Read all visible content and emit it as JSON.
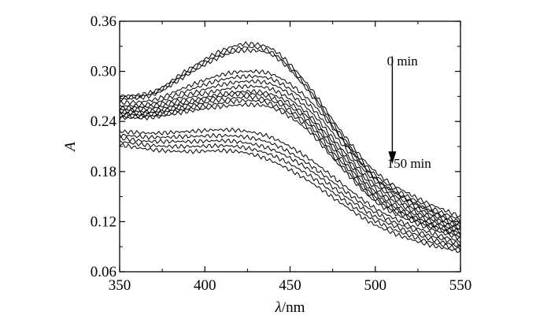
{
  "chart_data": {
    "type": "line",
    "xlabel_symbol": "λ",
    "xlabel_unit": "/nm",
    "ylabel": "A",
    "xlim": [
      350,
      550
    ],
    "ylim": [
      0.06,
      0.36
    ],
    "x_ticks": [
      350,
      400,
      450,
      500,
      550
    ],
    "x_tick_labels": [
      "350",
      "400",
      "450",
      "500",
      "550"
    ],
    "y_ticks": [
      0.06,
      0.12,
      0.18,
      0.24,
      0.3,
      0.36
    ],
    "y_tick_labels": [
      "0.06",
      "0.12",
      "0.18",
      "0.24",
      "0.30",
      "0.36"
    ],
    "grid": false,
    "legend": "none",
    "annotations": [
      {
        "text": "0 min",
        "x": 505,
        "y": 0.313
      },
      {
        "text": "150 min",
        "x": 505,
        "y": 0.19
      }
    ],
    "arrow": {
      "x": 510,
      "y_start": 0.318,
      "y_end": 0.189
    },
    "series": [
      {
        "values": [
          [
            350,
            0.27
          ],
          [
            370,
            0.276
          ],
          [
            390,
            0.302
          ],
          [
            410,
            0.325
          ],
          [
            425,
            0.333
          ],
          [
            440,
            0.326
          ],
          [
            460,
            0.285
          ],
          [
            480,
            0.228
          ],
          [
            500,
            0.18
          ],
          [
            525,
            0.148
          ],
          [
            550,
            0.126
          ]
        ]
      },
      {
        "values": [
          [
            350,
            0.268
          ],
          [
            370,
            0.274
          ],
          [
            390,
            0.299
          ],
          [
            410,
            0.321
          ],
          [
            425,
            0.329
          ],
          [
            440,
            0.322
          ],
          [
            460,
            0.281
          ],
          [
            480,
            0.224
          ],
          [
            500,
            0.176
          ],
          [
            525,
            0.144
          ],
          [
            550,
            0.122
          ]
        ]
      },
      {
        "values": [
          [
            350,
            0.266
          ],
          [
            370,
            0.272
          ],
          [
            390,
            0.296
          ],
          [
            410,
            0.318
          ],
          [
            425,
            0.325
          ],
          [
            440,
            0.319
          ],
          [
            460,
            0.278
          ],
          [
            480,
            0.22
          ],
          [
            500,
            0.172
          ],
          [
            525,
            0.14
          ],
          [
            550,
            0.119
          ]
        ]
      },
      {
        "values": [
          [
            350,
            0.262
          ],
          [
            370,
            0.266
          ],
          [
            390,
            0.282
          ],
          [
            410,
            0.296
          ],
          [
            425,
            0.3
          ],
          [
            440,
            0.296
          ],
          [
            460,
            0.268
          ],
          [
            480,
            0.22
          ],
          [
            500,
            0.172
          ],
          [
            525,
            0.14
          ],
          [
            550,
            0.116
          ]
        ]
      },
      {
        "values": [
          [
            350,
            0.258
          ],
          [
            370,
            0.262
          ],
          [
            390,
            0.277
          ],
          [
            410,
            0.29
          ],
          [
            425,
            0.294
          ],
          [
            440,
            0.29
          ],
          [
            460,
            0.262
          ],
          [
            480,
            0.214
          ],
          [
            500,
            0.168
          ],
          [
            525,
            0.136
          ],
          [
            550,
            0.114
          ]
        ]
      },
      {
        "values": [
          [
            350,
            0.256
          ],
          [
            370,
            0.259
          ],
          [
            390,
            0.272
          ],
          [
            410,
            0.284
          ],
          [
            425,
            0.288
          ],
          [
            440,
            0.284
          ],
          [
            460,
            0.256
          ],
          [
            480,
            0.208
          ],
          [
            500,
            0.164
          ],
          [
            525,
            0.133
          ],
          [
            550,
            0.112
          ]
        ]
      },
      {
        "values": [
          [
            350,
            0.254
          ],
          [
            370,
            0.256
          ],
          [
            390,
            0.268
          ],
          [
            410,
            0.278
          ],
          [
            425,
            0.282
          ],
          [
            440,
            0.278
          ],
          [
            460,
            0.25
          ],
          [
            480,
            0.204
          ],
          [
            500,
            0.16
          ],
          [
            525,
            0.13
          ],
          [
            550,
            0.11
          ]
        ]
      },
      {
        "values": [
          [
            350,
            0.252
          ],
          [
            370,
            0.253
          ],
          [
            390,
            0.264
          ],
          [
            410,
            0.273
          ],
          [
            425,
            0.276
          ],
          [
            440,
            0.272
          ],
          [
            460,
            0.246
          ],
          [
            480,
            0.2
          ],
          [
            500,
            0.156
          ],
          [
            525,
            0.127
          ],
          [
            550,
            0.108
          ]
        ]
      },
      {
        "values": [
          [
            350,
            0.25
          ],
          [
            370,
            0.251
          ],
          [
            390,
            0.261
          ],
          [
            410,
            0.27
          ],
          [
            425,
            0.273
          ],
          [
            440,
            0.268
          ],
          [
            460,
            0.242
          ],
          [
            480,
            0.196
          ],
          [
            500,
            0.153
          ],
          [
            525,
            0.124
          ],
          [
            550,
            0.106
          ]
        ]
      },
      {
        "values": [
          [
            350,
            0.248
          ],
          [
            370,
            0.249
          ],
          [
            390,
            0.258
          ],
          [
            410,
            0.266
          ],
          [
            425,
            0.269
          ],
          [
            440,
            0.264
          ],
          [
            460,
            0.238
          ],
          [
            480,
            0.192
          ],
          [
            500,
            0.15
          ],
          [
            525,
            0.122
          ],
          [
            550,
            0.104
          ]
        ]
      },
      {
        "values": [
          [
            350,
            0.246
          ],
          [
            370,
            0.247
          ],
          [
            390,
            0.255
          ],
          [
            410,
            0.262
          ],
          [
            425,
            0.265
          ],
          [
            440,
            0.26
          ],
          [
            460,
            0.234
          ],
          [
            480,
            0.188
          ],
          [
            500,
            0.147
          ],
          [
            525,
            0.12
          ],
          [
            550,
            0.102
          ]
        ]
      },
      {
        "values": [
          [
            350,
            0.244
          ],
          [
            370,
            0.245
          ],
          [
            390,
            0.252
          ],
          [
            410,
            0.258
          ],
          [
            425,
            0.26
          ],
          [
            440,
            0.256
          ],
          [
            460,
            0.23
          ],
          [
            480,
            0.185
          ],
          [
            500,
            0.144
          ],
          [
            525,
            0.117
          ],
          [
            550,
            0.1
          ]
        ]
      },
      {
        "values": [
          [
            350,
            0.228
          ],
          [
            370,
            0.226
          ],
          [
            390,
            0.228
          ],
          [
            410,
            0.23
          ],
          [
            425,
            0.228
          ],
          [
            440,
            0.22
          ],
          [
            460,
            0.197
          ],
          [
            480,
            0.166
          ],
          [
            500,
            0.136
          ],
          [
            525,
            0.112
          ],
          [
            550,
            0.096
          ]
        ]
      },
      {
        "values": [
          [
            350,
            0.224
          ],
          [
            370,
            0.221
          ],
          [
            390,
            0.222
          ],
          [
            410,
            0.223
          ],
          [
            425,
            0.221
          ],
          [
            440,
            0.213
          ],
          [
            460,
            0.19
          ],
          [
            480,
            0.16
          ],
          [
            500,
            0.131
          ],
          [
            525,
            0.108
          ],
          [
            550,
            0.093
          ]
        ]
      },
      {
        "values": [
          [
            350,
            0.22
          ],
          [
            370,
            0.216
          ],
          [
            390,
            0.216
          ],
          [
            410,
            0.217
          ],
          [
            425,
            0.214
          ],
          [
            440,
            0.206
          ],
          [
            460,
            0.184
          ],
          [
            480,
            0.154
          ],
          [
            500,
            0.126
          ],
          [
            525,
            0.104
          ],
          [
            550,
            0.09
          ]
        ]
      },
      {
        "values": [
          [
            350,
            0.216
          ],
          [
            370,
            0.211
          ],
          [
            390,
            0.21
          ],
          [
            410,
            0.211
          ],
          [
            425,
            0.208
          ],
          [
            440,
            0.199
          ],
          [
            460,
            0.177
          ],
          [
            480,
            0.148
          ],
          [
            500,
            0.121
          ],
          [
            525,
            0.1
          ],
          [
            550,
            0.087
          ]
        ]
      },
      {
        "values": [
          [
            350,
            0.212
          ],
          [
            370,
            0.206
          ],
          [
            390,
            0.204
          ],
          [
            410,
            0.205
          ],
          [
            425,
            0.202
          ],
          [
            440,
            0.192
          ],
          [
            460,
            0.17
          ],
          [
            480,
            0.142
          ],
          [
            500,
            0.116
          ],
          [
            525,
            0.096
          ],
          [
            550,
            0.084
          ]
        ]
      }
    ]
  }
}
